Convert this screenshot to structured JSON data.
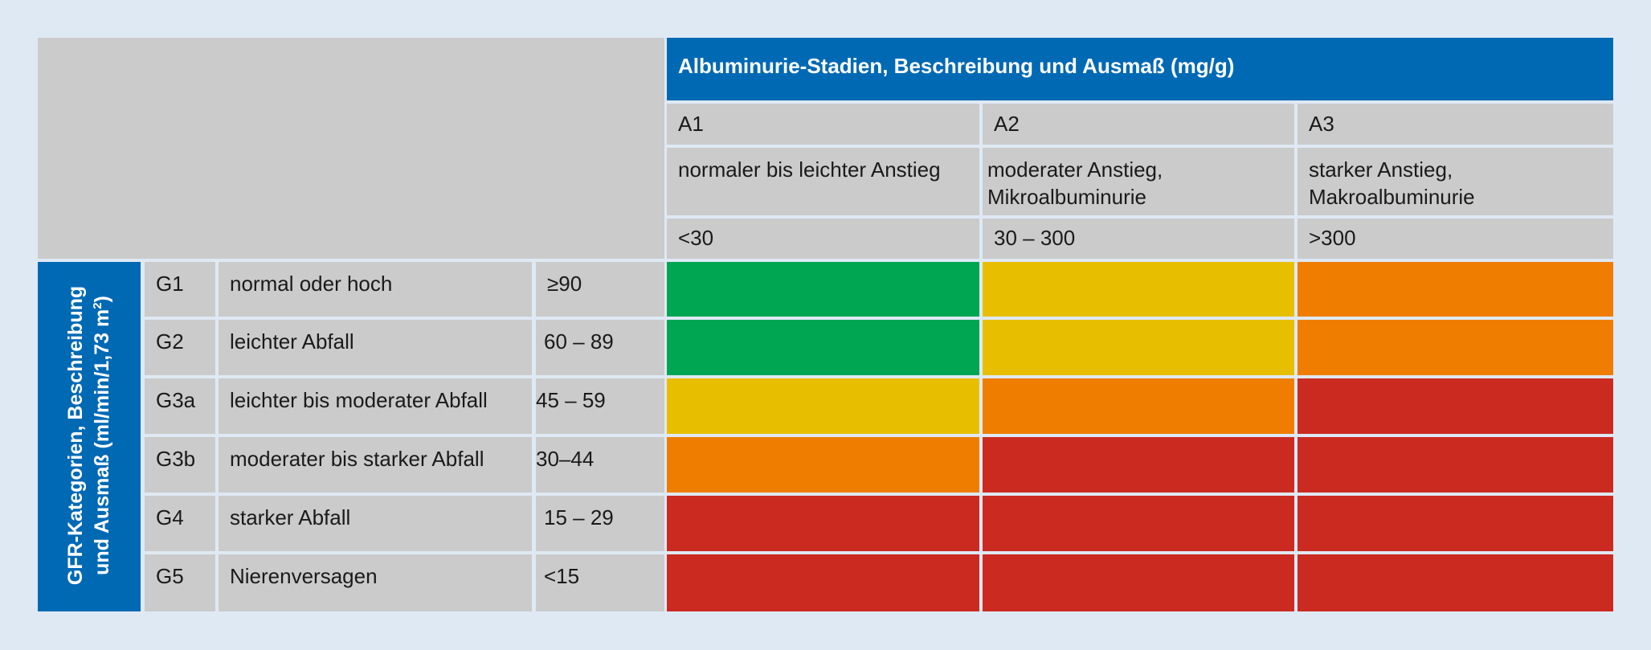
{
  "albuminuria": {
    "title": "Albuminurie-Stadien, Beschreibung und Ausmaß (mg/g)",
    "stages": [
      {
        "code": "A1",
        "description": "normaler bis leichter Anstieg",
        "range": "<30"
      },
      {
        "code": "A2",
        "description": "moderater Anstieg, Mikroalbuminurie",
        "range": "30 – 300"
      },
      {
        "code": "A3",
        "description": "starker Anstieg, Makroalbuminurie",
        "range": ">300"
      }
    ]
  },
  "gfr": {
    "label_line1": "GFR-Kategorien, Beschreibung",
    "label_line2_pre": "und Ausmaß (ml/min/1,73 m",
    "label_line2_sup": "2",
    "label_line2_post": ")",
    "rows": [
      {
        "code": "G1",
        "description": "normal oder hoch",
        "range": "≥90"
      },
      {
        "code": "G2",
        "description": "leichter Abfall",
        "range": "60 – 89"
      },
      {
        "code": "G3a",
        "description": "leichter bis moderater Abfall",
        "range": "45 – 59"
      },
      {
        "code": "G3b",
        "description": "moderater bis starker Abfall",
        "range": "30–44"
      },
      {
        "code": "G4",
        "description": "starker Abfall",
        "range": "15 – 29"
      },
      {
        "code": "G5",
        "description": "Nierenversagen",
        "range": "<15"
      }
    ]
  },
  "risk_colors": {
    "low": "#00a651",
    "moderate": "#e8bf00",
    "high": "#ef7d00",
    "very_high": "#cb2a21"
  },
  "risk_matrix": [
    [
      "low",
      "moderate",
      "high"
    ],
    [
      "low",
      "moderate",
      "high"
    ],
    [
      "moderate",
      "high",
      "very_high"
    ],
    [
      "high",
      "very_high",
      "very_high"
    ],
    [
      "very_high",
      "very_high",
      "very_high"
    ],
    [
      "very_high",
      "very_high",
      "very_high"
    ]
  ]
}
